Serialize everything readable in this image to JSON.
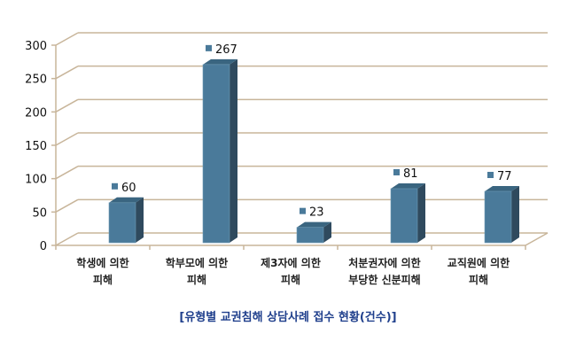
{
  "chart_data": {
    "type": "bar",
    "title": "[유형별 교권침해 상담사례 접수 현황(건수)]",
    "categories": [
      [
        "학생에 의한",
        "피해"
      ],
      [
        "학부모에 의한",
        "피해"
      ],
      [
        "제3자에 의한",
        "피해"
      ],
      [
        "처분권자에 의한",
        "부당한 신분피해"
      ],
      [
        "교직원에 의한",
        "피해"
      ]
    ],
    "values": [
      60,
      267,
      23,
      81,
      77
    ],
    "ylim": [
      0,
      300
    ],
    "yticks": [
      0,
      50,
      100,
      150,
      200,
      250,
      300
    ],
    "grid": true,
    "xlabel": "",
    "ylabel": "",
    "colors": {
      "bar_front": "#4a7a9a",
      "bar_side": "#2f4a5e",
      "bar_top": "#3a6580",
      "grid": "#c8b59a"
    }
  }
}
